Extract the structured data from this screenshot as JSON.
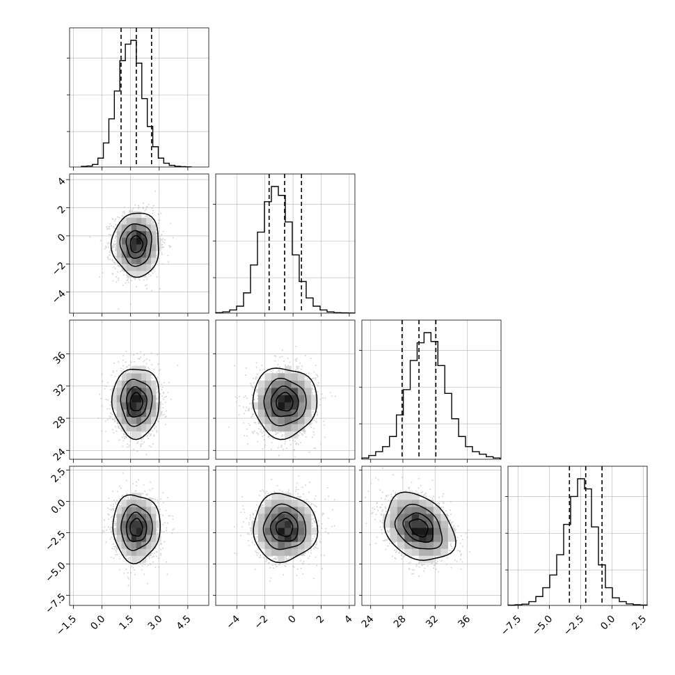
{
  "chart_data": {
    "type": "corner",
    "variables": [
      {
        "ticks": [
          -1.5,
          0.0,
          1.5,
          3.0,
          4.5
        ],
        "tick_labels": [
          "−1.5",
          "0.0",
          "1.5",
          "3.0",
          "4.5"
        ],
        "range": [
          -1.7,
          5.6
        ],
        "mean": 1.8,
        "sd": 0.6,
        "quantiles": [
          1.0,
          1.8,
          2.6
        ]
      },
      {
        "ticks": [
          -4,
          -2,
          0,
          2,
          4
        ],
        "tick_labels": [
          "−4",
          "−2",
          "0",
          "2",
          "4"
        ],
        "range": [
          -5.5,
          4.4
        ],
        "mean": -0.6,
        "sd": 1.1,
        "quantiles": [
          -1.7,
          -0.6,
          0.6
        ]
      },
      {
        "ticks": [
          24,
          28,
          32,
          36
        ],
        "tick_labels": [
          "24",
          "28",
          "32",
          "36"
        ],
        "range": [
          22.9,
          40.2
        ],
        "mean": 30.0,
        "sd": 2.1,
        "quantiles": [
          27.9,
          30.0,
          32.1
        ]
      },
      {
        "ticks": [
          -7.5,
          -5.0,
          -2.5,
          0.0,
          2.5
        ],
        "tick_labels": [
          "−7.5",
          "−5.0",
          "−2.5",
          "0.0",
          "2.5"
        ],
        "range": [
          -8.3,
          2.8
        ],
        "mean": -2.1,
        "sd": 1.3,
        "quantiles": [
          -3.4,
          -2.1,
          -0.8
        ]
      }
    ],
    "hist_bins": 20,
    "histograms": [
      [
        0.005,
        0.008,
        0.02,
        0.07,
        0.19,
        0.38,
        0.6,
        0.84,
        0.97,
        1.0,
        0.82,
        0.54,
        0.32,
        0.16,
        0.07,
        0.03,
        0.013,
        0.006,
        0.003,
        0.001
      ],
      [
        0.004,
        0.01,
        0.025,
        0.055,
        0.16,
        0.38,
        0.64,
        0.88,
        1.0,
        0.93,
        0.72,
        0.46,
        0.25,
        0.12,
        0.055,
        0.025,
        0.01,
        0.004,
        0.002,
        0.001
      ],
      [
        0.01,
        0.03,
        0.06,
        0.1,
        0.18,
        0.35,
        0.55,
        0.78,
        0.92,
        1.0,
        0.93,
        0.74,
        0.52,
        0.32,
        0.18,
        0.1,
        0.06,
        0.04,
        0.02,
        0.01
      ],
      [
        0.002,
        0.005,
        0.01,
        0.03,
        0.07,
        0.14,
        0.24,
        0.4,
        0.64,
        0.86,
        1.0,
        0.92,
        0.62,
        0.32,
        0.14,
        0.06,
        0.03,
        0.012,
        0.006,
        0.003
      ]
    ],
    "correlations": {
      "1-0": 0.0,
      "2-0": 0.0,
      "2-1": 0.0,
      "3-0": 0.0,
      "3-1": 0.0,
      "3-2": -0.28
    },
    "contour_levels_sigma": [
      0.5,
      1.0,
      1.5,
      2.0
    ],
    "grid": true,
    "colors": {
      "line": "#000000",
      "points": "#b0b0b0",
      "density_dark": "#111111",
      "grid": "#b0b0b0"
    }
  }
}
